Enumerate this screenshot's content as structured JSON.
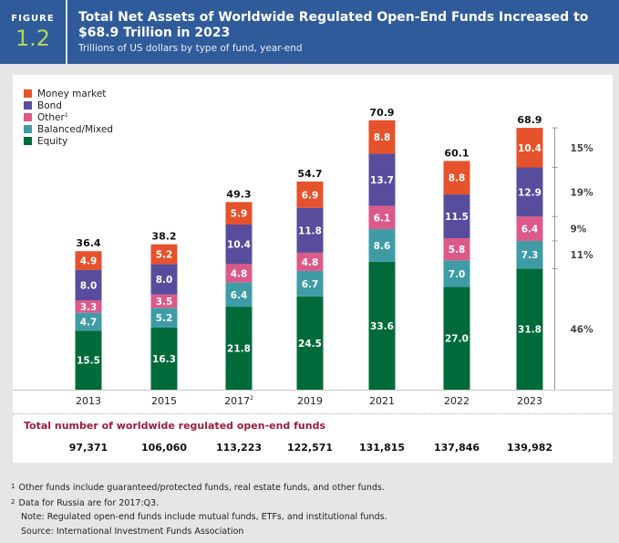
{
  "header": {
    "figure_label": "FIGURE",
    "figure_number": "1.2",
    "title": "Total Net Assets of Worldwide Regulated Open-End Funds Increased to $68.9 Trillion in 2023",
    "subtitle": "Trillions of US dollars by type of fund, year-end"
  },
  "chart_data": {
    "type": "bar",
    "stacked": true,
    "title": "Total Net Assets of Worldwide Regulated Open-End Funds Increased to $68.9 Trillion in 2023",
    "subtitle": "Trillions of US dollars by type of fund, year-end",
    "xlabel": "",
    "ylabel": "Trillions of US dollars",
    "categories": [
      "2013",
      "2015",
      "2017",
      "2019",
      "2021",
      "2022",
      "2023"
    ],
    "category_superscripts": [
      "",
      "",
      "2",
      "",
      "",
      "",
      ""
    ],
    "series": [
      {
        "name": "Equity",
        "color": "#006b3a",
        "values": [
          15.5,
          16.3,
          21.8,
          24.5,
          33.6,
          27.0,
          31.8
        ]
      },
      {
        "name": "Balanced/Mixed",
        "color": "#3f9ca6",
        "values": [
          4.7,
          5.2,
          6.4,
          6.7,
          8.6,
          7.0,
          7.3
        ]
      },
      {
        "name": "Other",
        "superscript": "1",
        "color": "#dc5a89",
        "values": [
          3.3,
          3.5,
          4.8,
          4.8,
          6.1,
          5.8,
          6.4
        ]
      },
      {
        "name": "Bond",
        "color": "#574d9c",
        "values": [
          8.0,
          8.0,
          10.4,
          11.8,
          13.7,
          11.5,
          12.9
        ]
      },
      {
        "name": "Money market",
        "color": "#e5522b",
        "values": [
          4.9,
          5.2,
          5.9,
          6.9,
          8.8,
          8.8,
          10.4
        ]
      }
    ],
    "totals": [
      "36.4",
      "38.2",
      "49.3",
      "54.7",
      "70.9",
      "60.1",
      "68.9"
    ],
    "share_2023": [
      {
        "series": "Money market",
        "label": "15%"
      },
      {
        "series": "Bond",
        "label": "19%"
      },
      {
        "series": "Other",
        "label": "9%"
      },
      {
        "series": "Balanced/Mixed",
        "label": "11%"
      },
      {
        "series": "Equity",
        "label": "46%"
      }
    ],
    "ylim": [
      0,
      72
    ],
    "grid": false,
    "legend_position": "top-left"
  },
  "legend": [
    {
      "label": "Money market",
      "sup": "",
      "color": "#e5522b"
    },
    {
      "label": "Bond",
      "sup": "",
      "color": "#574d9c"
    },
    {
      "label": "Other",
      "sup": "1",
      "color": "#dc5a89"
    },
    {
      "label": "Balanced/Mixed",
      "sup": "",
      "color": "#3f9ca6"
    },
    {
      "label": "Equity",
      "sup": "",
      "color": "#006b3a"
    }
  ],
  "funds": {
    "title": "Total number of worldwide regulated open-end funds",
    "counts": [
      "97,371",
      "106,060",
      "113,223",
      "122,571",
      "131,815",
      "137,846",
      "139,982"
    ]
  },
  "footnotes": {
    "fn1_mark": "1",
    "fn1": "Other funds include guaranteed/protected funds, real estate funds, and other funds.",
    "fn2_mark": "2",
    "fn2": "Data for Russia are for 2017:Q3.",
    "note": "Note: Regulated open-end funds include mutual funds, ETFs, and institutional funds.",
    "source": "Source: International Investment Funds Association"
  }
}
